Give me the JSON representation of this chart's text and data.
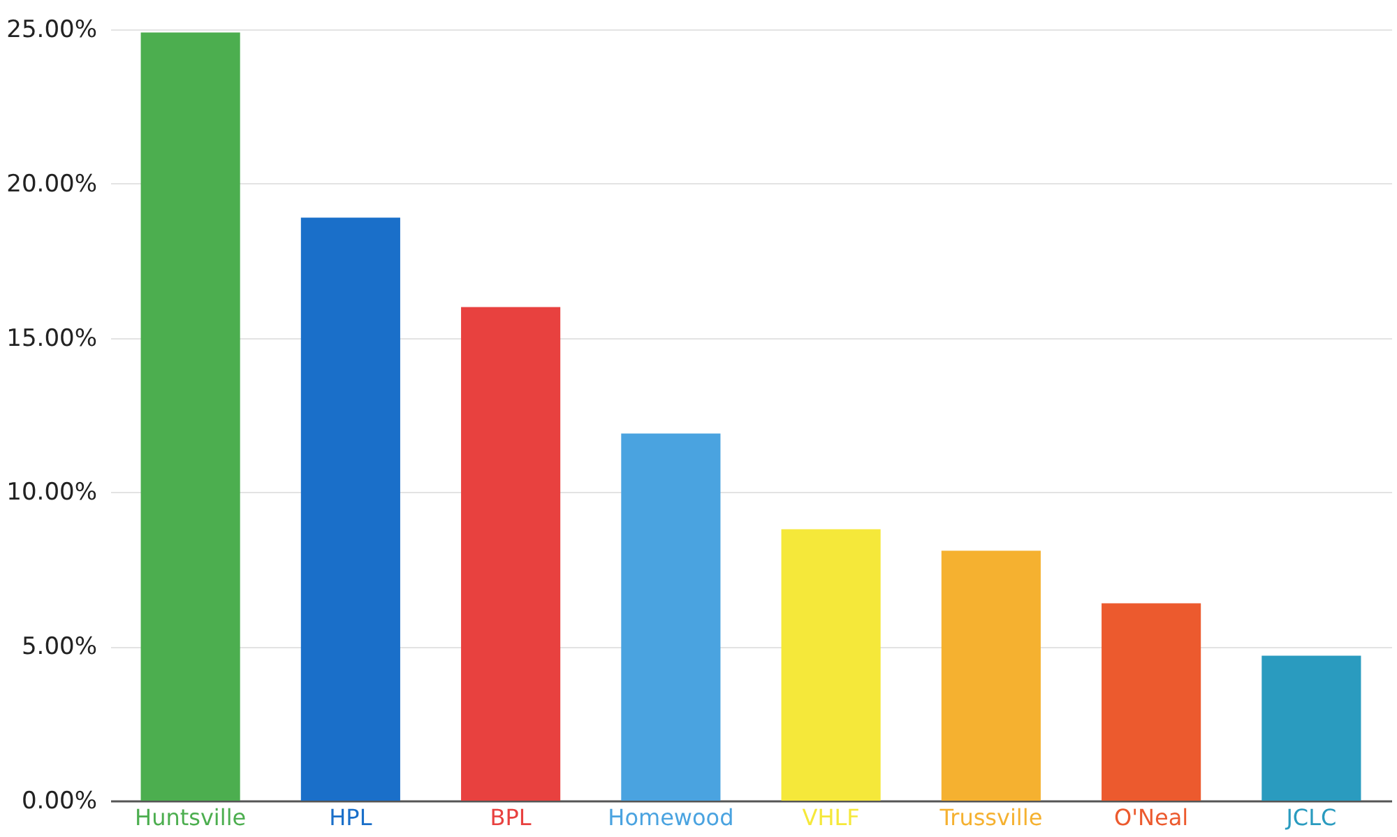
{
  "chart_data": {
    "type": "bar",
    "categories": [
      "Huntsville",
      "HPL",
      "BPL",
      "Homewood",
      "VHLF",
      "Trussville",
      "O'Neal",
      "JCLC"
    ],
    "values": [
      24.9,
      18.9,
      16.0,
      11.9,
      8.8,
      8.1,
      6.4,
      4.7
    ],
    "colors": [
      "#4cae4f",
      "#1a6fc9",
      "#e8413f",
      "#4aa3e0",
      "#f5e83a",
      "#f5b130",
      "#ec5a2e",
      "#2a9bbf"
    ],
    "ylim": [
      0,
      25
    ],
    "yticks": [
      {
        "value": 0,
        "label": "0.00%"
      },
      {
        "value": 5,
        "label": "5.00%"
      },
      {
        "value": 10,
        "label": "10.00%"
      },
      {
        "value": 15,
        "label": "15.00%"
      },
      {
        "value": 20,
        "label": "20.00%"
      },
      {
        "value": 25,
        "label": "25.00%"
      }
    ],
    "grid": "y",
    "legend": false
  }
}
